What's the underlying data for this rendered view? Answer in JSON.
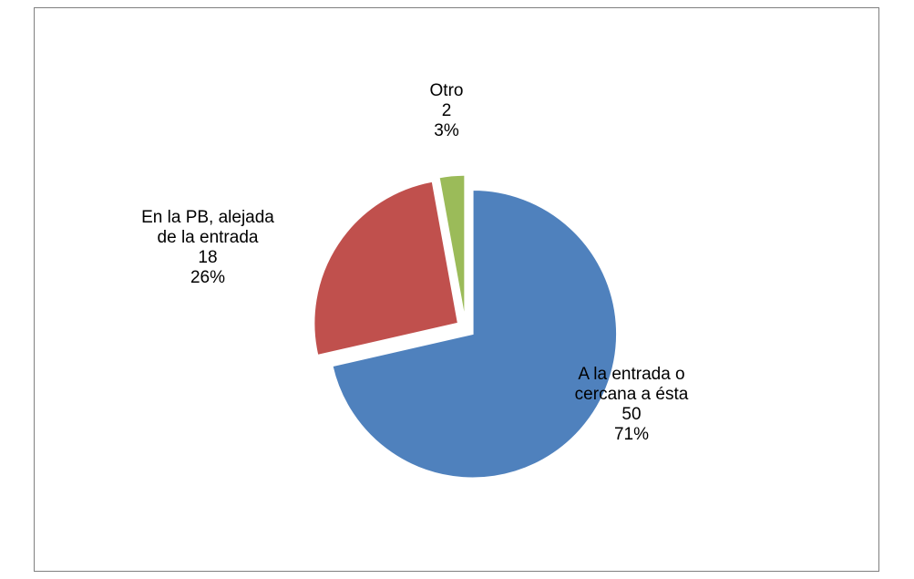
{
  "chart_data": {
    "type": "pie",
    "title": "",
    "slices": [
      {
        "label_lines": [
          "A la entrada o",
          "cercana a ésta"
        ],
        "value": 50,
        "percent": "71%",
        "color": "#4f81bd"
      },
      {
        "label_lines": [
          "En la PB, alejada",
          "de la entrada"
        ],
        "value": 18,
        "percent": "26%",
        "color": "#c0504d"
      },
      {
        "label_lines": [
          "Otro"
        ],
        "value": 2,
        "percent": "3%",
        "color": "#9bbb59"
      }
    ],
    "start_angle_deg": 0,
    "direction": "clockwise",
    "exploded": true,
    "legend": "none"
  }
}
